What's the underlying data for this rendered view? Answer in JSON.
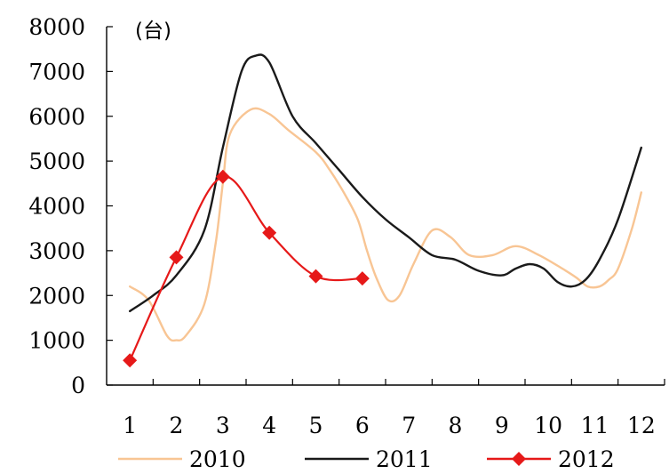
{
  "chart_data": {
    "type": "line",
    "unit_label": "(台)",
    "categories": [
      "1",
      "2",
      "3",
      "4",
      "5",
      "6",
      "7",
      "8",
      "9",
      "10",
      "11",
      "12"
    ],
    "ylim": [
      0,
      8000
    ],
    "yticks": [
      "0",
      "1000",
      "2000",
      "3000",
      "4000",
      "5000",
      "6000",
      "7000",
      "8000"
    ],
    "grid": false,
    "legend_position": "bottom",
    "series": [
      {
        "name": "2010",
        "color": "#f8c594",
        "marker": "none",
        "x": [
          1,
          1.4,
          1.8,
          2.0,
          2.2,
          2.6,
          2.85,
          3.0,
          3.15,
          3.6,
          4.0,
          4.4,
          5.0,
          5.3,
          5.6,
          5.9,
          6.1,
          6.3,
          6.55,
          6.8,
          7.1,
          7.5,
          7.9,
          8.3,
          8.8,
          9.3,
          9.8,
          10.3,
          10.6,
          10.85,
          11.1,
          11.3,
          11.5,
          11.8,
          12.0
        ],
        "y": [
          2200,
          1900,
          1100,
          1000,
          1100,
          1800,
          3200,
          4500,
          5600,
          6150,
          6050,
          5700,
          5200,
          4800,
          4300,
          3700,
          3000,
          2400,
          1900,
          2000,
          2700,
          3450,
          3300,
          2900,
          2900,
          3100,
          2900,
          2600,
          2400,
          2200,
          2200,
          2350,
          2600,
          3500,
          4300
        ]
      },
      {
        "name": "2011",
        "color": "#1a1a1a",
        "marker": "none",
        "x": [
          1,
          1.5,
          2.0,
          2.6,
          3.0,
          3.4,
          3.7,
          4.0,
          4.5,
          5.0,
          5.5,
          6.0,
          6.5,
          7.0,
          7.5,
          8.0,
          8.5,
          9.0,
          9.3,
          9.6,
          9.9,
          10.2,
          10.5,
          10.8,
          11.1,
          11.5,
          12.0
        ],
        "y": [
          1650,
          2000,
          2450,
          3450,
          5300,
          7000,
          7350,
          7200,
          6000,
          5400,
          4800,
          4200,
          3700,
          3300,
          2900,
          2800,
          2550,
          2450,
          2600,
          2700,
          2600,
          2300,
          2200,
          2350,
          2800,
          3700,
          5300
        ]
      },
      {
        "name": "2012",
        "color": "#e61919",
        "marker": "diamond",
        "x": [
          1,
          2,
          3,
          4,
          5,
          6
        ],
        "y": [
          550,
          2850,
          4650,
          3400,
          2430,
          2380
        ]
      }
    ]
  }
}
